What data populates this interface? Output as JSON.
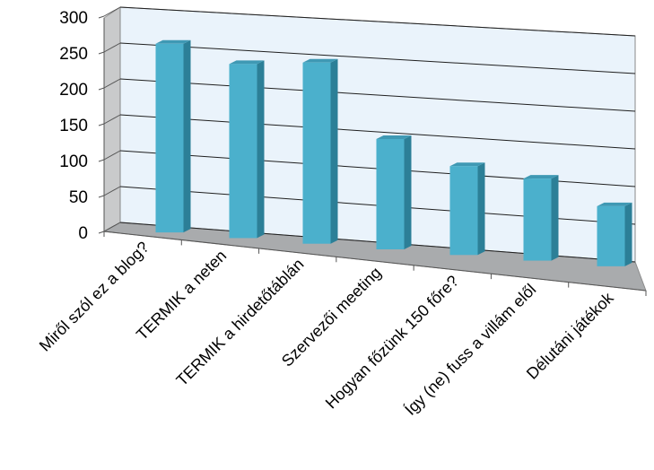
{
  "chart_data": {
    "type": "bar",
    "style": "3d-column",
    "categories": [
      "Miről szól ez a blog?",
      "TERMIK a neten",
      "TERMIK a hirdetőtáblán",
      "Szervezői meeting",
      "Hogyan főzünk 150 főre?",
      "Így (ne) fuss a villám elől",
      "Délutáni játékok"
    ],
    "values": [
      262,
      240,
      248,
      150,
      120,
      110,
      80
    ],
    "yticks": [
      0,
      50,
      100,
      150,
      200,
      250,
      300
    ],
    "ylim": [
      0,
      300
    ],
    "grid": true,
    "legend": "none",
    "colors": {
      "bar_front": "#4bb0cc",
      "bar_side": "#2c7f97",
      "bar_top": "#3f99b4",
      "back_wall": "#eaf3fb",
      "side_wall": "#c9cacb",
      "floor": "#a9abad",
      "gridline": "#1f1f1f"
    }
  }
}
